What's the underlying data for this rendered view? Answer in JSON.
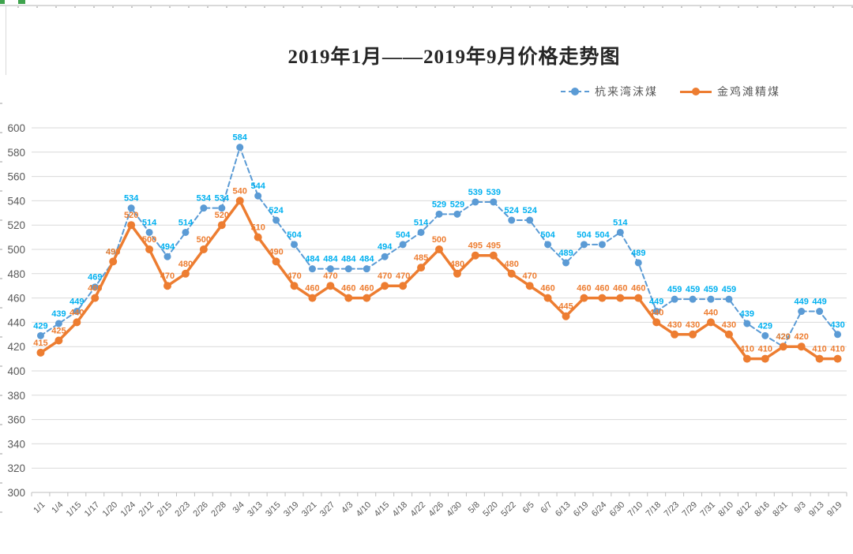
{
  "window": {
    "context": "excel-embedded-chart",
    "selection_handle_color": "#3FA34D"
  },
  "title": "2019年1月——2019年9月价格走势图",
  "legend": {
    "position": "top-right",
    "items": [
      "杭来湾沫煤",
      "金鸡滩精煤"
    ]
  },
  "colors": {
    "blue_series": "#5B9BD5",
    "blue_labels": "#00B0F0",
    "orange_series": "#ED7D31",
    "gridline": "#D9D9D9",
    "axis_line": "#BFBFBF",
    "axis_text": "#595959",
    "title_text": "#262626"
  },
  "chart_data": {
    "type": "line",
    "title": "2019年1月——2019年9月价格走势图",
    "xlabel": "",
    "ylabel": "",
    "ylim": [
      300,
      600
    ],
    "ytick_step": 20,
    "grid": true,
    "data_labels": true,
    "legend_position": "top-right",
    "categories": [
      "1/1",
      "1/4",
      "1/15",
      "1/17",
      "1/20",
      "1/24",
      "2/12",
      "2/15",
      "2/23",
      "2/26",
      "2/28",
      "3/4",
      "3/13",
      "3/15",
      "3/19",
      "3/21",
      "3/27",
      "4/3",
      "4/10",
      "4/15",
      "4/18",
      "4/22",
      "4/26",
      "4/30",
      "5/8",
      "5/20",
      "5/22",
      "6/5",
      "6/7",
      "6/13",
      "6/19",
      "6/24",
      "6/30",
      "7/10",
      "7/18",
      "7/23",
      "7/29",
      "7/31",
      "8/10",
      "8/12",
      "8/16",
      "8/31",
      "9/3",
      "9/13",
      "9/19"
    ],
    "series": [
      {
        "id": "hanglaiwan",
        "name": "杭来湾沫煤",
        "color": "#5B9BD5",
        "label_color": "#00B0F0",
        "line_style": "dashed",
        "marker": "circle",
        "values": [
          429,
          439,
          449,
          469,
          490,
          534,
          514,
          494,
          514,
          534,
          534,
          584,
          544,
          524,
          504,
          484,
          484,
          484,
          484,
          494,
          504,
          514,
          529,
          529,
          539,
          539,
          524,
          524,
          504,
          489,
          504,
          504,
          514,
          489,
          449,
          459,
          459,
          459,
          459,
          439,
          429,
          420,
          449,
          449,
          430
        ]
      },
      {
        "id": "jinjitan",
        "name": "金鸡滩精煤",
        "color": "#ED7D31",
        "label_color": "#ED7D31",
        "line_style": "solid",
        "marker": "circle",
        "values": [
          415,
          425,
          440,
          460,
          490,
          520,
          500,
          470,
          480,
          500,
          520,
          540,
          510,
          490,
          470,
          460,
          470,
          460,
          460,
          470,
          470,
          485,
          500,
          480,
          495,
          495,
          480,
          470,
          460,
          445,
          460,
          460,
          460,
          460,
          440,
          430,
          430,
          440,
          430,
          410,
          410,
          420,
          420,
          410,
          410
        ]
      }
    ]
  }
}
